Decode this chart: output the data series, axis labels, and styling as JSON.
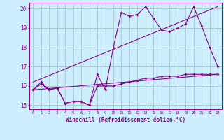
{
  "background_color": "#cceeff",
  "grid_color": "#aacccc",
  "line_color": "#880088",
  "x_label": "Windchill (Refroidissement éolien,°C)",
  "y_min": 15,
  "y_max": 20,
  "x_min": 0,
  "x_max": 23,
  "series1_x": [
    0,
    1,
    2,
    3,
    4,
    5,
    6,
    7,
    8,
    9,
    10,
    11,
    12,
    13,
    14,
    15,
    16,
    17,
    18,
    19,
    20,
    21,
    22,
    23
  ],
  "series1_y": [
    15.8,
    16.2,
    15.8,
    15.9,
    15.1,
    15.2,
    15.2,
    15.0,
    16.6,
    15.8,
    18.0,
    19.8,
    19.6,
    19.7,
    20.1,
    19.5,
    18.9,
    18.8,
    19.0,
    19.2,
    20.1,
    19.1,
    18.0,
    17.0
  ],
  "series2_x": [
    0,
    1,
    2,
    3,
    4,
    5,
    6,
    7,
    8,
    9,
    10,
    11,
    12,
    13,
    14,
    15,
    16,
    17,
    18,
    19,
    20,
    21,
    22,
    23
  ],
  "series2_y": [
    15.8,
    16.1,
    15.8,
    15.9,
    15.1,
    15.2,
    15.2,
    15.0,
    16.0,
    16.0,
    16.0,
    16.1,
    16.2,
    16.3,
    16.4,
    16.4,
    16.5,
    16.5,
    16.5,
    16.6,
    16.6,
    16.6,
    16.6,
    16.6
  ],
  "series3_x": [
    0,
    23
  ],
  "series3_y": [
    15.8,
    16.6
  ],
  "series4_x": [
    0,
    23
  ],
  "series4_y": [
    16.2,
    20.1
  ]
}
